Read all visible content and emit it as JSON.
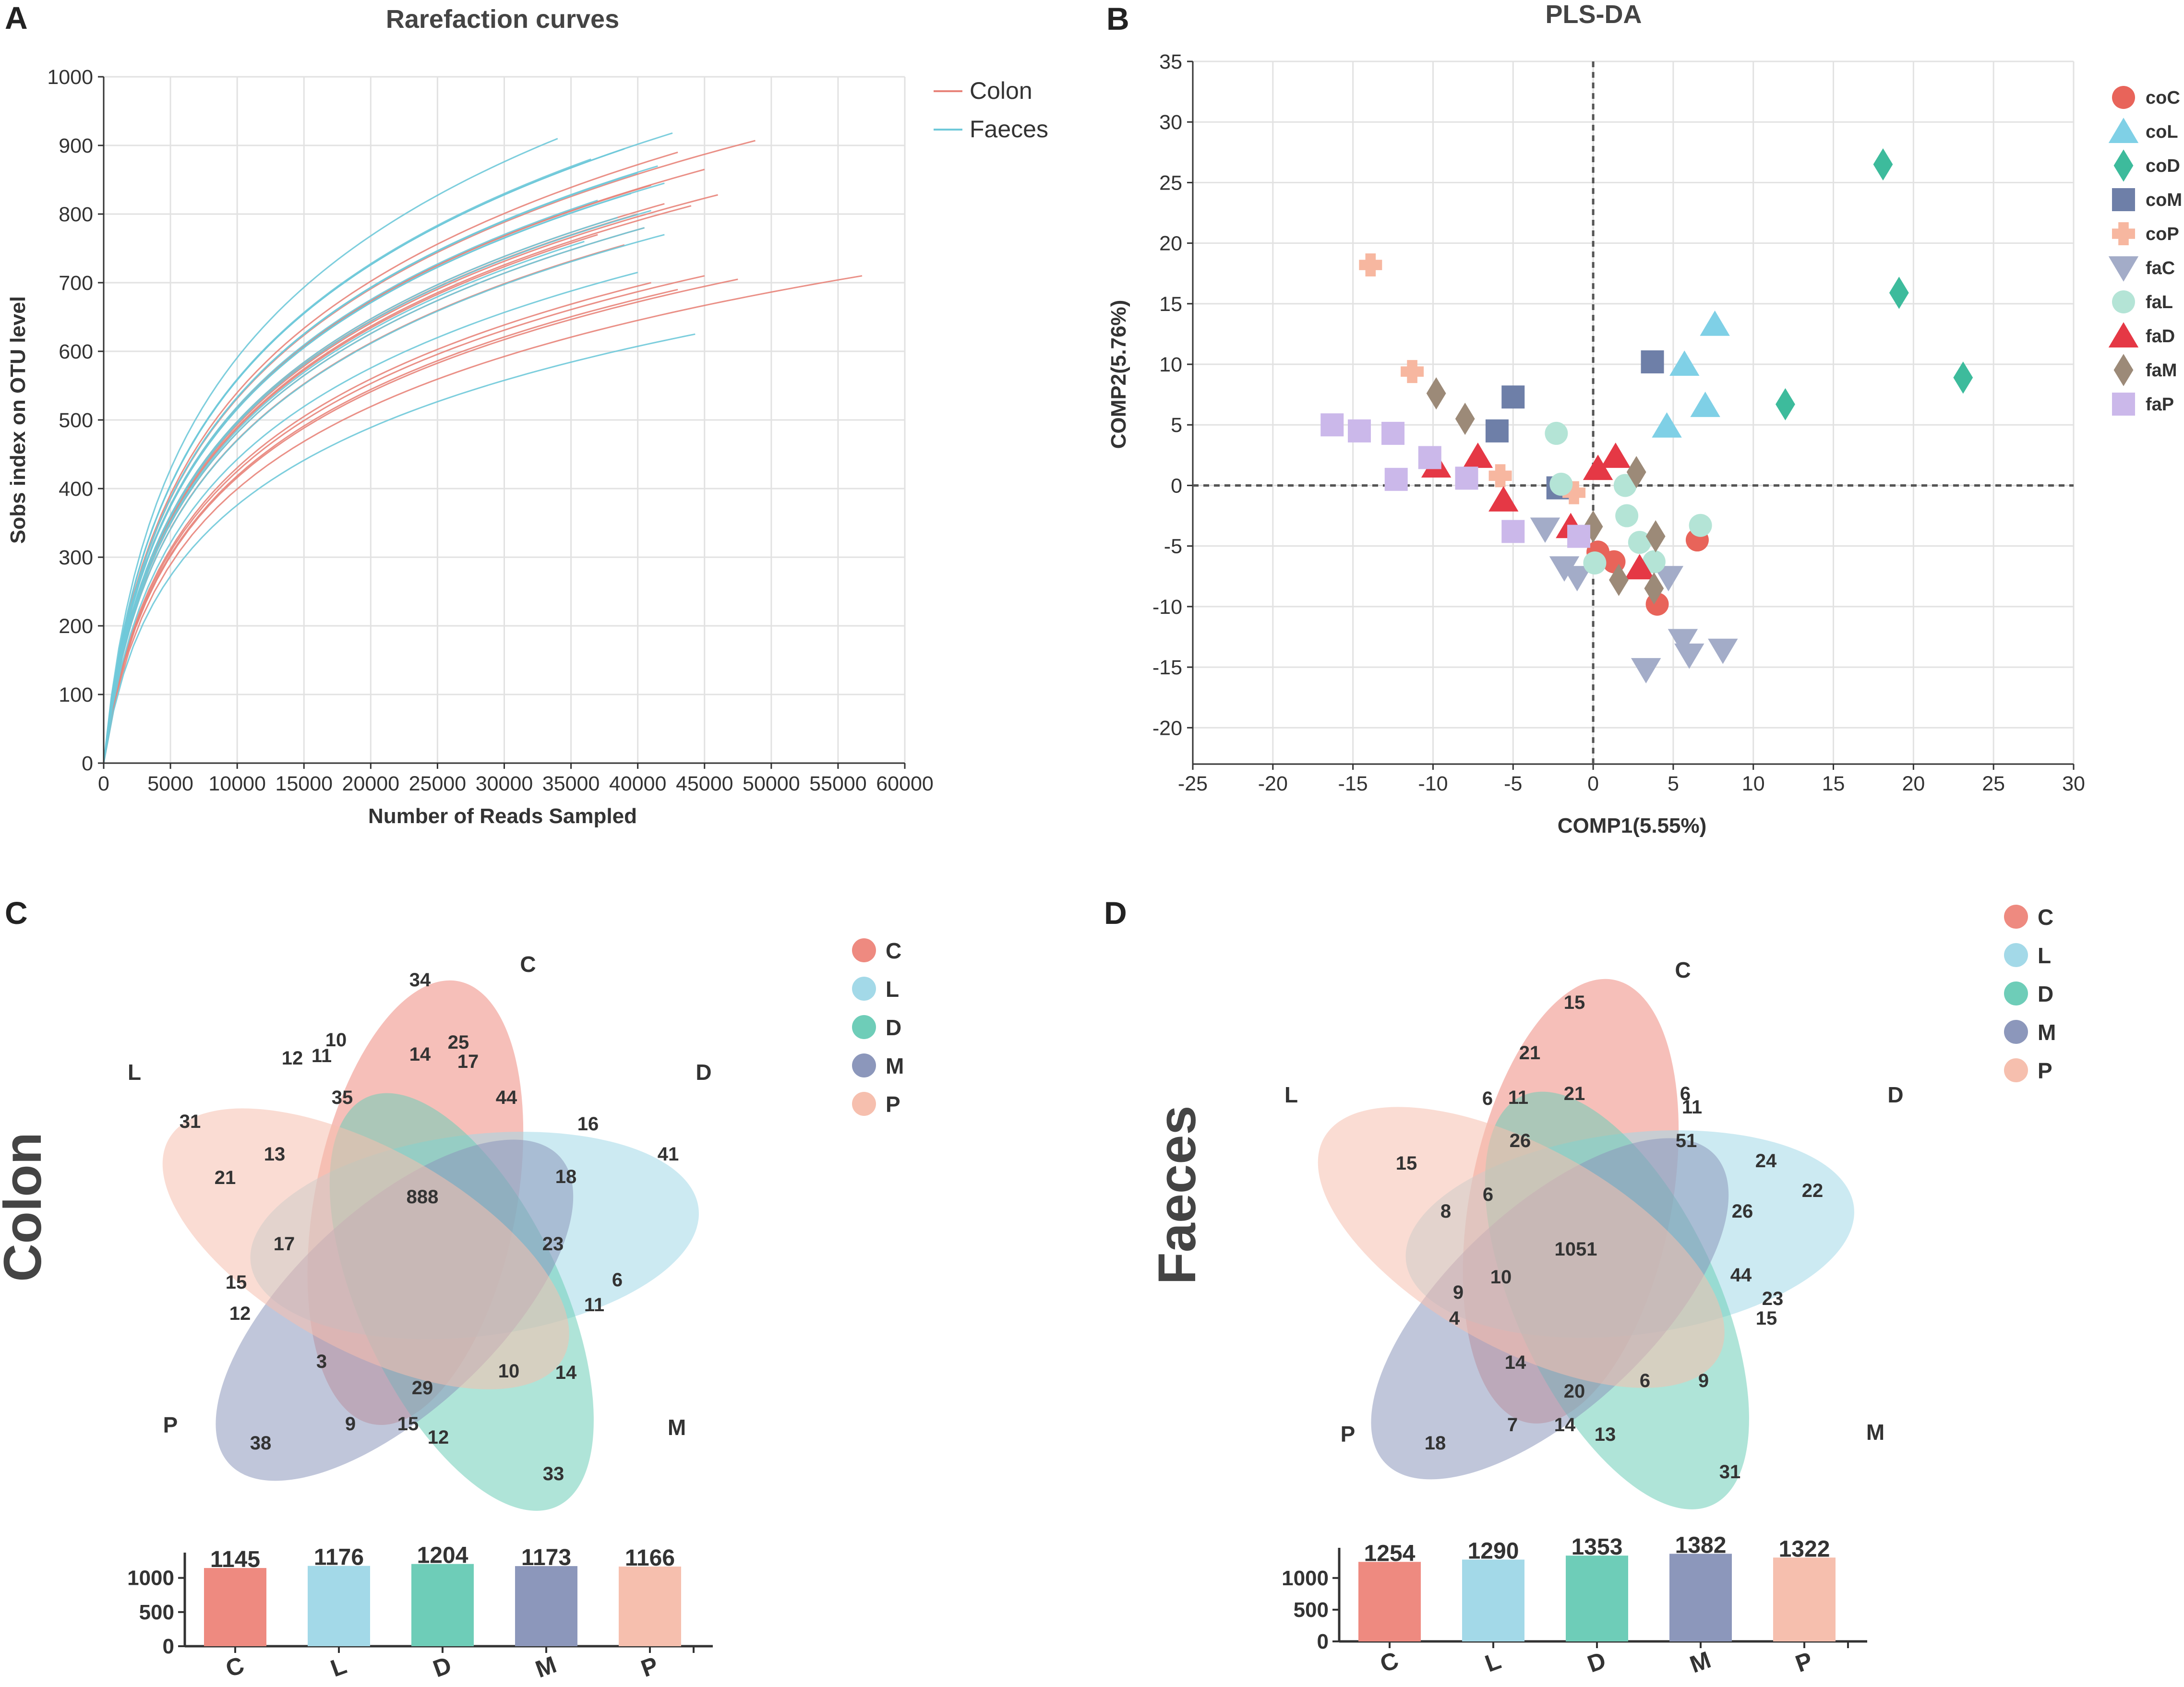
{
  "panels": {
    "a": "A",
    "b": "B",
    "c": "C",
    "d": "D"
  },
  "colors": {
    "colon": "#e8847a",
    "faeces": "#6fc9d9",
    "coC": "#e8645a",
    "coL": "#7fd0e6",
    "coD": "#3dbb9c",
    "coM": "#6e7fa8",
    "coP": "#f7b7a0",
    "faC": "#a3acc8",
    "faL": "#b4e4d6",
    "faD": "#e53845",
    "faM": "#9c8a78",
    "faP": "#cbb8ea",
    "setC": "#ee8a80",
    "setL": "#a3d9e8",
    "setD": "#6ecdb8",
    "setM": "#8c97bb",
    "setP": "#f6bfae"
  },
  "chart_data": [
    {
      "type": "line",
      "title": "Rarefaction curves",
      "xlabel": "Number of Reads Sampled",
      "ylabel": "Sobs index on OTU level",
      "xlim": [
        0,
        60000
      ],
      "ylim": [
        0,
        1000
      ],
      "xticks": [
        "0",
        "5000",
        "10000",
        "15000",
        "20000",
        "25000",
        "30000",
        "35000",
        "40000",
        "45000",
        "50000",
        "55000",
        "60000"
      ],
      "yticks": [
        "0",
        "100",
        "200",
        "300",
        "400",
        "500",
        "600",
        "700",
        "800",
        "900",
        "1000"
      ],
      "legend": [
        "Colon",
        "Faeces"
      ],
      "series": [
        {
          "name": "Colon",
          "endpoints": [
            [
              48800,
              907
            ],
            [
              43000,
              890
            ],
            [
              45000,
              865
            ],
            [
              46000,
              828
            ],
            [
              41000,
              842
            ],
            [
              42000,
              815
            ],
            [
              40000,
              800
            ],
            [
              38000,
              788
            ],
            [
              40500,
              780
            ],
            [
              37000,
              770
            ],
            [
              44000,
              812
            ],
            [
              39000,
              755
            ],
            [
              45000,
              710
            ],
            [
              47500,
              705
            ],
            [
              56800,
              710
            ],
            [
              41000,
              700
            ],
            [
              43000,
              690
            ]
          ]
        },
        {
          "name": "Faeces",
          "endpoints": [
            [
              34000,
              910
            ],
            [
              42600,
              918
            ],
            [
              39000,
              895
            ],
            [
              41500,
              870
            ],
            [
              36500,
              880
            ],
            [
              40000,
              860
            ],
            [
              42000,
              845
            ],
            [
              39500,
              830
            ],
            [
              37000,
              820
            ],
            [
              41000,
              805
            ],
            [
              38500,
              795
            ],
            [
              40500,
              780
            ],
            [
              42000,
              770
            ],
            [
              36000,
              760
            ],
            [
              40000,
              715
            ],
            [
              44300,
              625
            ]
          ]
        }
      ]
    },
    {
      "type": "scatter",
      "title": "PLS-DA",
      "xlabel": "COMP1(5.55%)",
      "ylabel": "COMP2(5.76%)",
      "xlim": [
        -25,
        30
      ],
      "ylim": [
        -23,
        35
      ],
      "xticks": [
        "-25",
        "-20",
        "-15",
        "-10",
        "-5",
        "0",
        "5",
        "10",
        "15",
        "20",
        "25",
        "30"
      ],
      "yticks": [
        "-20",
        "-15",
        "-10",
        "-5",
        "0",
        "5",
        "10",
        "15",
        "20",
        "25",
        "30",
        "35"
      ],
      "series": [
        {
          "name": "coC",
          "marker": "circle",
          "points": [
            [
              6.5,
              -4.5
            ],
            [
              4,
              -9.8
            ],
            [
              1.3,
              -6.3
            ],
            [
              0.3,
              -5.5
            ]
          ]
        },
        {
          "name": "coL",
          "marker": "triangle-up",
          "points": [
            [
              7.6,
              13.3
            ],
            [
              5.7,
              10
            ],
            [
              7,
              6.6
            ],
            [
              4.6,
              4.9
            ]
          ]
        },
        {
          "name": "coD",
          "marker": "diamond",
          "points": [
            [
              18.1,
              26.5
            ],
            [
              19.1,
              15.9
            ],
            [
              23.1,
              8.9
            ],
            [
              12,
              6.7
            ]
          ]
        },
        {
          "name": "coM",
          "marker": "square",
          "points": [
            [
              3.7,
              10.2
            ],
            [
              -5,
              7.3
            ],
            [
              -6,
              4.5
            ],
            [
              -2.2,
              -0.2
            ]
          ]
        },
        {
          "name": "coP",
          "marker": "cross",
          "points": [
            [
              -13.9,
              18.2
            ],
            [
              -11.3,
              9.4
            ],
            [
              -5.8,
              0.8
            ],
            [
              -1.2,
              -0.6
            ]
          ]
        },
        {
          "name": "faC",
          "marker": "triangle-down",
          "points": [
            [
              -3,
              -3.6
            ],
            [
              -1.8,
              -6.8
            ],
            [
              -1,
              -7.6
            ],
            [
              4.7,
              -7.6
            ],
            [
              5.6,
              -12.8
            ],
            [
              6,
              -14
            ],
            [
              8.1,
              -13.6
            ],
            [
              3.3,
              -15.2
            ]
          ]
        },
        {
          "name": "faL",
          "marker": "circle",
          "points": [
            [
              -2.3,
              4.3
            ],
            [
              -2,
              0.1
            ],
            [
              2,
              0
            ],
            [
              2.1,
              -2.5
            ],
            [
              2.9,
              -4.7
            ],
            [
              3.8,
              -6.3
            ],
            [
              6.7,
              -3.3
            ],
            [
              0.1,
              -6.4
            ]
          ]
        },
        {
          "name": "faD",
          "marker": "triangle-up",
          "points": [
            [
              1.4,
              2.4
            ],
            [
              0.3,
              1.4
            ],
            [
              -9.8,
              1.6
            ],
            [
              -7.2,
              2.4
            ],
            [
              -5.6,
              -1.2
            ],
            [
              -1.4,
              -3.4
            ],
            [
              2.9,
              -6.8
            ]
          ]
        },
        {
          "name": "faM",
          "marker": "diamond",
          "points": [
            [
              -9.8,
              7.6
            ],
            [
              -8,
              5.5
            ],
            [
              2.7,
              1.1
            ],
            [
              0,
              -3.4
            ],
            [
              3.9,
              -4.2
            ],
            [
              3.8,
              -8.5
            ],
            [
              1.6,
              -7.8
            ]
          ]
        },
        {
          "name": "faP",
          "marker": "square",
          "points": [
            [
              -16.3,
              5
            ],
            [
              -14.6,
              4.5
            ],
            [
              -12.5,
              4.3
            ],
            [
              -10.2,
              2.3
            ],
            [
              -12.3,
              0.5
            ],
            [
              -7.9,
              0.6
            ],
            [
              -5,
              -3.8
            ],
            [
              -0.9,
              -4.2
            ]
          ]
        }
      ]
    },
    {
      "type": "venn",
      "title": "Colon",
      "sets": [
        "C",
        "L",
        "D",
        "M",
        "P"
      ],
      "regions": [
        "34",
        "10",
        "14",
        "25",
        "17",
        "12",
        "11",
        "35",
        "44",
        "16",
        "31",
        "13",
        "41",
        "21",
        "18",
        "888",
        "23",
        "6",
        "15",
        "17",
        "11",
        "12",
        "3",
        "29",
        "10",
        "14",
        "9",
        "15",
        "12",
        "38",
        "33"
      ],
      "bars": {
        "type": "bar",
        "categories": [
          "C",
          "L",
          "D",
          "M",
          "P"
        ],
        "values": [
          1145,
          1176,
          1204,
          1173,
          1166
        ],
        "ylim": [
          0,
          1300
        ],
        "yticks": [
          "0",
          "500",
          "1000"
        ]
      }
    },
    {
      "type": "venn",
      "title": "Faeces",
      "sets": [
        "C",
        "L",
        "D",
        "M",
        "P"
      ],
      "regions": [
        "15",
        "21",
        "6",
        "21",
        "11",
        "6",
        "11",
        "26",
        "51",
        "24",
        "15",
        "22",
        "6",
        "8",
        "26",
        "1051",
        "10",
        "44",
        "9",
        "23",
        "4",
        "15",
        "14",
        "20",
        "6",
        "9",
        "7",
        "14",
        "13",
        "18",
        "31"
      ],
      "bars": {
        "type": "bar",
        "categories": [
          "C",
          "L",
          "D",
          "M",
          "P"
        ],
        "values": [
          1254,
          1290,
          1353,
          1382,
          1322
        ],
        "ylim": [
          0,
          1400
        ],
        "yticks": [
          "0",
          "500",
          "1000"
        ]
      }
    }
  ]
}
